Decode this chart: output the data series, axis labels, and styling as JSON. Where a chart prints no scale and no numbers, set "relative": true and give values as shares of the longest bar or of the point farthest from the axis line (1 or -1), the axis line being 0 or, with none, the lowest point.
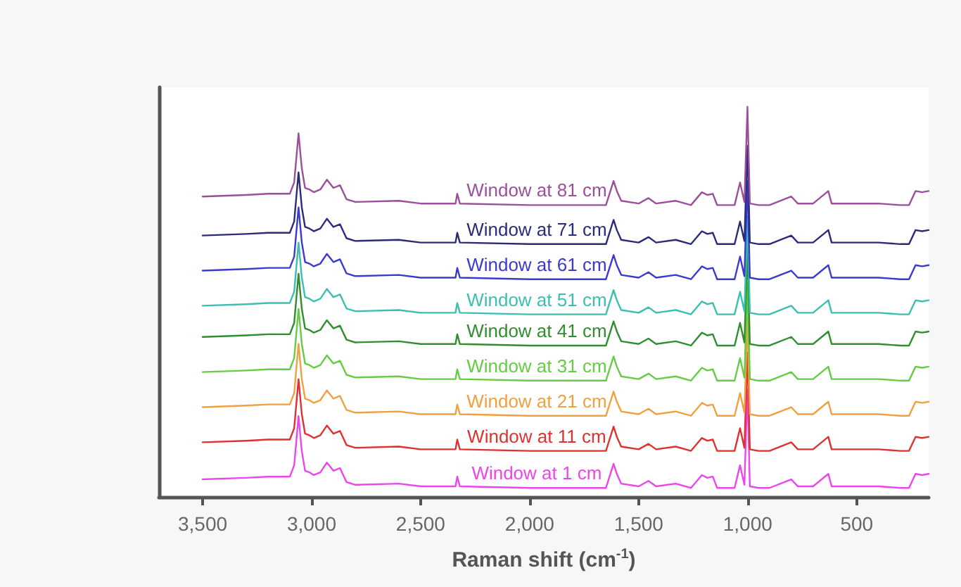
{
  "chart_data": {
    "type": "line",
    "relative": true,
    "xlabel": "Raman shift (cm$^{-1}$)",
    "xlim": [
      3700,
      170
    ],
    "xticks": [
      {
        "value": 3500,
        "label": "3,500"
      },
      {
        "value": 3000,
        "label": "3,000"
      },
      {
        "value": 2500,
        "label": "2,500"
      },
      {
        "value": 2000,
        "label": "2,000"
      },
      {
        "value": 1500,
        "label": "1,500"
      },
      {
        "value": 1000,
        "label": "1,000"
      },
      {
        "value": 500,
        "label": "500"
      }
    ],
    "grid": false,
    "legend": false,
    "marker": "none",
    "line_style": "solid",
    "x": [
      3500,
      3300,
      3200,
      3100,
      3080,
      3060,
      3045,
      3030,
      3010,
      2990,
      2960,
      2930,
      2900,
      2870,
      2840,
      2800,
      2600,
      2500,
      2340,
      2332,
      2320,
      2000,
      1650,
      1615,
      1600,
      1580,
      1500,
      1455,
      1420,
      1330,
      1260,
      1210,
      1185,
      1160,
      1140,
      1060,
      1035,
      1015,
      1001,
      990,
      950,
      900,
      800,
      770,
      700,
      630,
      615,
      400,
      300,
      260,
      230,
      200,
      170
    ],
    "series": [
      {
        "name": "Window at 81 cm",
        "color": "#9b4f9b",
        "values": [
          0.77,
          0.774,
          0.777,
          0.777,
          0.806,
          0.932,
          0.842,
          0.792,
          0.788,
          0.781,
          0.788,
          0.813,
          0.792,
          0.799,
          0.763,
          0.756,
          0.759,
          0.752,
          0.752,
          0.777,
          0.752,
          0.748,
          0.748,
          0.81,
          0.784,
          0.759,
          0.752,
          0.766,
          0.752,
          0.759,
          0.748,
          0.781,
          0.774,
          0.777,
          0.748,
          0.748,
          0.806,
          0.756,
          1.0,
          0.752,
          0.748,
          0.748,
          0.77,
          0.752,
          0.752,
          0.784,
          0.752,
          0.752,
          0.748,
          0.748,
          0.784,
          0.781,
          0.784
        ]
      },
      {
        "name": "Window at 71 cm",
        "color": "#2b2b7a",
        "values": [
          0.67,
          0.674,
          0.677,
          0.677,
          0.706,
          0.832,
          0.742,
          0.692,
          0.688,
          0.681,
          0.688,
          0.713,
          0.692,
          0.699,
          0.663,
          0.656,
          0.659,
          0.652,
          0.652,
          0.677,
          0.652,
          0.648,
          0.648,
          0.71,
          0.684,
          0.659,
          0.652,
          0.666,
          0.652,
          0.659,
          0.648,
          0.681,
          0.674,
          0.677,
          0.648,
          0.648,
          0.706,
          0.656,
          0.9,
          0.652,
          0.648,
          0.648,
          0.67,
          0.652,
          0.652,
          0.684,
          0.652,
          0.652,
          0.648,
          0.648,
          0.684,
          0.681,
          0.684
        ]
      },
      {
        "name": "Window at 61 cm",
        "color": "#3a3ad0",
        "values": [
          0.58,
          0.584,
          0.587,
          0.587,
          0.616,
          0.742,
          0.652,
          0.602,
          0.598,
          0.591,
          0.598,
          0.623,
          0.602,
          0.609,
          0.573,
          0.566,
          0.569,
          0.562,
          0.562,
          0.587,
          0.562,
          0.558,
          0.558,
          0.62,
          0.594,
          0.569,
          0.562,
          0.576,
          0.562,
          0.569,
          0.558,
          0.591,
          0.584,
          0.587,
          0.558,
          0.558,
          0.616,
          0.566,
          0.81,
          0.562,
          0.558,
          0.558,
          0.58,
          0.562,
          0.562,
          0.594,
          0.562,
          0.562,
          0.558,
          0.558,
          0.594,
          0.591,
          0.594
        ]
      },
      {
        "name": "Window at 51 cm",
        "color": "#3bbfb0",
        "values": [
          0.49,
          0.494,
          0.497,
          0.497,
          0.526,
          0.652,
          0.562,
          0.512,
          0.508,
          0.501,
          0.508,
          0.533,
          0.512,
          0.519,
          0.483,
          0.476,
          0.479,
          0.472,
          0.472,
          0.497,
          0.472,
          0.468,
          0.468,
          0.53,
          0.504,
          0.479,
          0.472,
          0.486,
          0.472,
          0.479,
          0.468,
          0.501,
          0.494,
          0.497,
          0.468,
          0.468,
          0.526,
          0.476,
          0.72,
          0.472,
          0.468,
          0.468,
          0.49,
          0.472,
          0.472,
          0.504,
          0.472,
          0.472,
          0.468,
          0.468,
          0.504,
          0.501,
          0.504
        ]
      },
      {
        "name": "Window at 41 cm",
        "color": "#2f8f2f",
        "values": [
          0.41,
          0.414,
          0.417,
          0.417,
          0.446,
          0.572,
          0.482,
          0.432,
          0.428,
          0.421,
          0.428,
          0.453,
          0.432,
          0.439,
          0.403,
          0.396,
          0.399,
          0.392,
          0.392,
          0.417,
          0.392,
          0.388,
          0.388,
          0.45,
          0.424,
          0.399,
          0.392,
          0.406,
          0.392,
          0.399,
          0.388,
          0.421,
          0.414,
          0.417,
          0.388,
          0.388,
          0.446,
          0.396,
          0.64,
          0.392,
          0.388,
          0.388,
          0.41,
          0.392,
          0.392,
          0.424,
          0.392,
          0.392,
          0.388,
          0.388,
          0.424,
          0.421,
          0.424
        ]
      },
      {
        "name": "Window at 31 cm",
        "color": "#66cc44",
        "values": [
          0.32,
          0.324,
          0.327,
          0.327,
          0.356,
          0.482,
          0.392,
          0.342,
          0.338,
          0.331,
          0.338,
          0.363,
          0.342,
          0.349,
          0.313,
          0.306,
          0.309,
          0.302,
          0.302,
          0.327,
          0.302,
          0.298,
          0.298,
          0.36,
          0.334,
          0.309,
          0.302,
          0.316,
          0.302,
          0.309,
          0.298,
          0.331,
          0.324,
          0.327,
          0.298,
          0.298,
          0.356,
          0.306,
          0.55,
          0.302,
          0.298,
          0.298,
          0.32,
          0.302,
          0.302,
          0.334,
          0.302,
          0.302,
          0.298,
          0.298,
          0.334,
          0.331,
          0.334
        ]
      },
      {
        "name": "Window at 21 cm",
        "color": "#f0a040",
        "values": [
          0.23,
          0.234,
          0.237,
          0.237,
          0.266,
          0.392,
          0.302,
          0.252,
          0.248,
          0.241,
          0.248,
          0.273,
          0.252,
          0.259,
          0.223,
          0.216,
          0.219,
          0.212,
          0.212,
          0.237,
          0.212,
          0.208,
          0.208,
          0.27,
          0.244,
          0.219,
          0.212,
          0.226,
          0.212,
          0.219,
          0.208,
          0.241,
          0.234,
          0.237,
          0.208,
          0.208,
          0.266,
          0.216,
          0.46,
          0.212,
          0.208,
          0.208,
          0.23,
          0.212,
          0.212,
          0.244,
          0.212,
          0.212,
          0.208,
          0.208,
          0.244,
          0.241,
          0.244
        ]
      },
      {
        "name": "Window at 11 cm",
        "color": "#e03030",
        "values": [
          0.14,
          0.144,
          0.147,
          0.147,
          0.176,
          0.302,
          0.212,
          0.162,
          0.158,
          0.151,
          0.158,
          0.183,
          0.162,
          0.169,
          0.133,
          0.126,
          0.129,
          0.122,
          0.122,
          0.147,
          0.122,
          0.118,
          0.118,
          0.18,
          0.154,
          0.129,
          0.122,
          0.136,
          0.122,
          0.129,
          0.118,
          0.151,
          0.144,
          0.147,
          0.118,
          0.118,
          0.176,
          0.126,
          0.37,
          0.122,
          0.118,
          0.118,
          0.14,
          0.122,
          0.122,
          0.154,
          0.122,
          0.122,
          0.118,
          0.118,
          0.154,
          0.151,
          0.154
        ]
      },
      {
        "name": "Window at 1 cm",
        "color": "#ee44ee",
        "values": [
          0.045,
          0.049,
          0.052,
          0.052,
          0.081,
          0.207,
          0.117,
          0.067,
          0.063,
          0.056,
          0.063,
          0.088,
          0.067,
          0.074,
          0.038,
          0.031,
          0.034,
          0.027,
          0.027,
          0.052,
          0.027,
          0.023,
          0.023,
          0.085,
          0.059,
          0.034,
          0.027,
          0.041,
          0.027,
          0.034,
          0.023,
          0.056,
          0.049,
          0.052,
          0.023,
          0.023,
          0.081,
          0.031,
          0.275,
          0.027,
          0.023,
          0.023,
          0.045,
          0.027,
          0.027,
          0.059,
          0.027,
          0.027,
          0.023,
          0.023,
          0.059,
          0.056,
          0.059
        ]
      }
    ]
  }
}
